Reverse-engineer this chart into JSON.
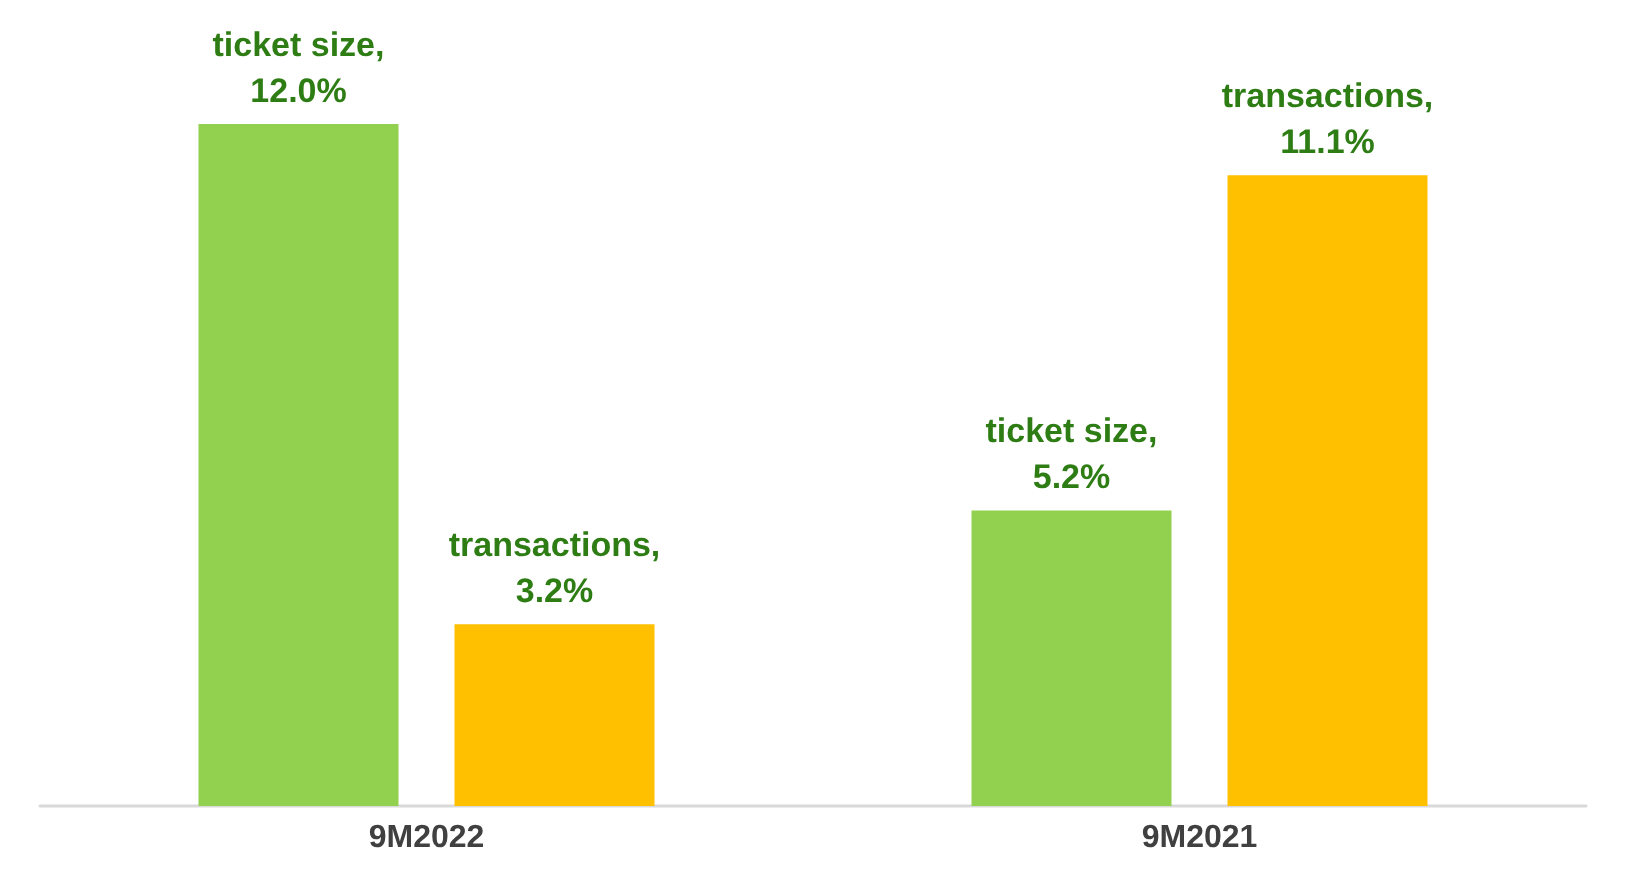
{
  "chart_data": {
    "type": "bar",
    "categories": [
      "9M2022",
      "9M2021"
    ],
    "series": [
      {
        "name": "ticket size,",
        "color": "#92d050",
        "values": [
          12.0,
          5.2
        ],
        "value_labels": [
          "12.0%",
          "5.2%"
        ]
      },
      {
        "name": "transactions,",
        "color": "#ffc000",
        "values": [
          3.2,
          11.1
        ],
        "value_labels": [
          "3.2%",
          "11.1%"
        ]
      }
    ],
    "ylim": [
      0,
      12
    ],
    "grid": false,
    "legend": false
  }
}
